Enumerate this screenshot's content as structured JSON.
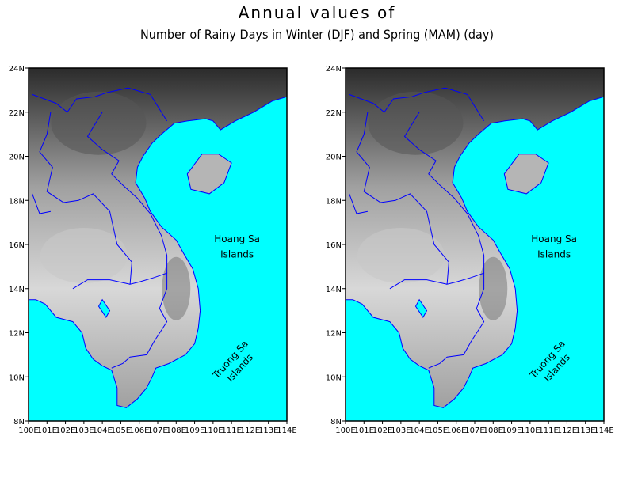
{
  "title": {
    "line1": "Annual values of",
    "line2": "Number of Rainy Days in Winter (DJF) and Spring (MAM) (day)"
  },
  "colors": {
    "sea": "#00ffff",
    "border": "#0000ff",
    "land_dark": "#2b2b2b",
    "land_mid": "#a0a0a0",
    "land_light": "#d8d8d8"
  },
  "map_extent": {
    "lon": [
      100,
      114
    ],
    "lat": [
      8,
      24
    ]
  },
  "axes": {
    "lat_ticks": [
      "24N",
      "22N",
      "20N",
      "18N",
      "16N",
      "14N",
      "12N",
      "10N",
      "8N"
    ],
    "lon_ticks": [
      "100E",
      "101E",
      "102E",
      "103E",
      "104E",
      "105E",
      "106E",
      "107E",
      "108E",
      "109E",
      "110E",
      "111E",
      "112E",
      "113E",
      "114E"
    ]
  },
  "labels": {
    "hoang_sa_1": "Hoang Sa",
    "hoang_sa_2": "Islands",
    "truong_sa_1": "Truong Sa",
    "truong_sa_2": "Islands"
  },
  "panels": [
    {
      "name": "map-panel-winter"
    },
    {
      "name": "map-panel-spring"
    }
  ]
}
